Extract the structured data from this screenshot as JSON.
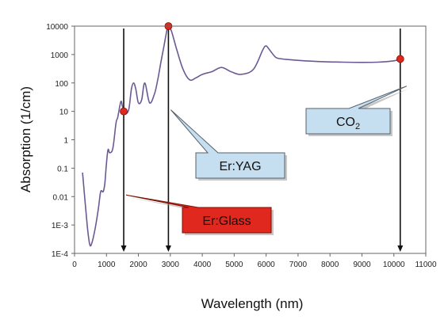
{
  "chart_data": {
    "type": "line",
    "xlabel": "Wavelength (nm)",
    "ylabel": "Absorption (1/cm)",
    "xscale": "linear",
    "yscale": "log",
    "xlim": [
      0,
      11000
    ],
    "ylim": [
      0.0001,
      10000
    ],
    "x_ticks": [
      0,
      1000,
      2000,
      3000,
      4000,
      5000,
      6000,
      7000,
      8000,
      9000,
      10000,
      11000
    ],
    "x_tick_labels": [
      "0",
      "1000",
      "2000",
      "3000",
      "4000",
      "5000",
      "6000",
      "7000",
      "8000",
      "9000",
      "10000",
      "11000"
    ],
    "y_ticks": [
      0.0001,
      0.001,
      0.01,
      0.1,
      1,
      10,
      100,
      1000,
      10000
    ],
    "y_tick_labels": [
      "1E-4",
      "1E-3",
      "0.01",
      "0.1",
      "1",
      "10",
      "100",
      "1000",
      "10000"
    ],
    "line_color": "#6b5a92",
    "series": [
      {
        "x": [
          250,
          400,
          480,
          550,
          650,
          750,
          820,
          900,
          950,
          1000,
          1050,
          1100,
          1200,
          1300,
          1350,
          1450,
          1500,
          1550,
          1600,
          1700,
          1780,
          1850,
          1920,
          2000,
          2100,
          2200,
          2350,
          2500,
          2600,
          2700,
          2800,
          2900,
          2940,
          3000,
          3050,
          3200,
          3400,
          3600,
          3800,
          4000,
          4300,
          4600,
          4900,
          5200,
          5600,
          5900,
          6000,
          6100,
          6300,
          6500,
          6800,
          7200,
          7800,
          8400,
          9000,
          9500,
          10000,
          10200
        ],
        "y": [
          0.07,
          0.0009,
          0.0002,
          0.00025,
          0.0008,
          0.004,
          0.015,
          0.015,
          0.03,
          0.15,
          0.45,
          0.35,
          0.5,
          4,
          6,
          22,
          15,
          10,
          8,
          12,
          60,
          100,
          60,
          20,
          25,
          100,
          20,
          40,
          120,
          500,
          2000,
          8000,
          10000,
          8000,
          6000,
          1500,
          300,
          130,
          150,
          200,
          250,
          350,
          250,
          200,
          300,
          1500,
          2000,
          1500,
          800,
          700,
          650,
          600,
          560,
          540,
          530,
          540,
          600,
          700
        ]
      }
    ],
    "markers": [
      {
        "x": 1540,
        "y": 10,
        "color": "#e0281e"
      },
      {
        "x": 2940,
        "y": 10000,
        "color": "#e0281e"
      },
      {
        "x": 10200,
        "y": 700,
        "color": "#e0281e"
      }
    ],
    "arrows": [
      {
        "x": 1540,
        "y_from": 10000
      },
      {
        "x": 2940,
        "y_from": 10000
      },
      {
        "x": 10200,
        "y_from": 10000
      }
    ],
    "callouts": [
      {
        "text_main": "Er:Glass",
        "text_sub": "",
        "fill": "#e0281e",
        "stroke": "#7a1208",
        "target_x": 1540,
        "target_y": 0.01
      },
      {
        "text_main": "Er:YAG",
        "text_sub": "",
        "fill": "#c6dff0",
        "stroke": "#55606a",
        "target_x": 2940,
        "target_y": 10
      },
      {
        "text_main": "CO",
        "text_sub": "2",
        "fill": "#c6dff0",
        "stroke": "#55606a",
        "target_x": 10200,
        "target_y": 100
      }
    ]
  }
}
